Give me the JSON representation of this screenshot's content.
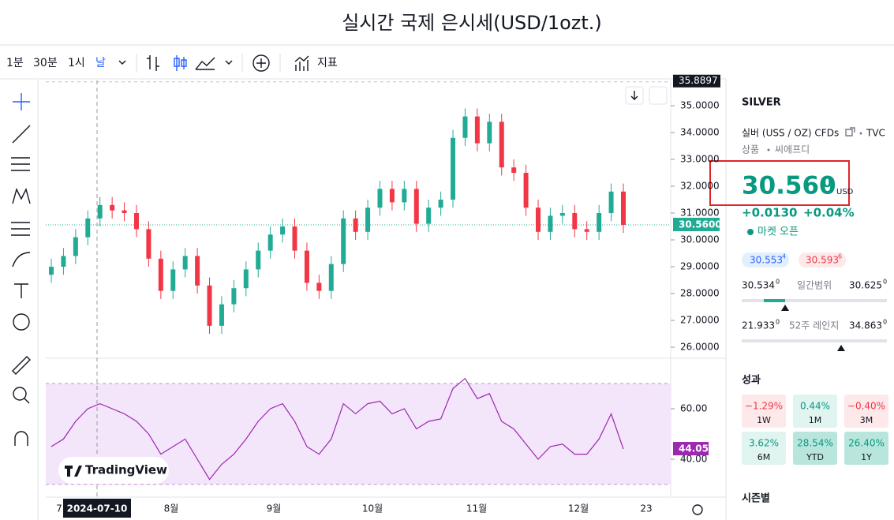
{
  "header": {
    "title": "실시간 국제 은시세(USD/1ozt.)"
  },
  "toolbar": {
    "intervals": [
      "1분",
      "30분",
      "1시",
      "날"
    ],
    "indicators": "지표"
  },
  "chart": {
    "type": "candlestick",
    "colors": {
      "up": "#22ab94",
      "down": "#f23645",
      "rsi": "#9c27b0"
    },
    "ylim": [
      25.59,
      35.94
    ],
    "yticks": [
      {
        "value": 26,
        "label": "26.0000"
      },
      {
        "value": 27,
        "label": "27.0000"
      },
      {
        "value": 28,
        "label": "28.0000"
      },
      {
        "value": 29,
        "label": "29.0000"
      },
      {
        "value": 30,
        "label": "30.0000"
      },
      {
        "value": 31,
        "label": "31.0000"
      },
      {
        "value": 32,
        "label": "32.0000"
      },
      {
        "value": 33,
        "label": "33.0000"
      },
      {
        "value": 34,
        "label": "34.0000"
      },
      {
        "value": 35,
        "label": "35.0000"
      }
    ],
    "top_label": 35.8897,
    "last": 30.56,
    "last_label": "30.5600",
    "candles": {
      "open": [
        28.7,
        29.0,
        29.4,
        30.1,
        30.8,
        31.3,
        31.1,
        31.0,
        30.4,
        29.3,
        28.1,
        28.9,
        29.4,
        28.3,
        26.8,
        27.6,
        28.2,
        28.9,
        29.6,
        30.2,
        30.5,
        29.6,
        28.4,
        28.1,
        29.1,
        30.8,
        30.3,
        31.2,
        31.9,
        31.4,
        31.9,
        30.6,
        31.2,
        31.5,
        33.8,
        34.6,
        33.6,
        34.4,
        32.7,
        32.5,
        31.2,
        30.3,
        30.9,
        31.0,
        30.4,
        30.3,
        31.0,
        31.8
      ],
      "high": [
        29.3,
        29.7,
        30.4,
        31.1,
        31.6,
        31.6,
        31.4,
        31.3,
        30.7,
        29.6,
        29.2,
        29.7,
        29.7,
        28.6,
        27.9,
        28.5,
        29.2,
        29.9,
        30.5,
        30.8,
        30.8,
        29.9,
        28.7,
        29.4,
        31.1,
        31.1,
        31.5,
        32.2,
        32.2,
        32.2,
        32.2,
        31.5,
        31.8,
        34.1,
        34.9,
        34.9,
        34.7,
        34.7,
        33.0,
        32.8,
        31.5,
        31.2,
        31.3,
        31.3,
        30.7,
        31.3,
        32.1,
        32.1
      ],
      "low": [
        28.4,
        28.7,
        29.1,
        29.8,
        30.5,
        30.8,
        30.7,
        30.1,
        29.0,
        27.8,
        27.8,
        28.6,
        28.0,
        26.5,
        26.5,
        27.3,
        27.9,
        28.6,
        29.3,
        29.9,
        29.3,
        28.1,
        27.8,
        27.8,
        28.8,
        30.0,
        30.0,
        30.9,
        31.1,
        31.1,
        30.3,
        30.3,
        30.9,
        31.2,
        33.5,
        33.3,
        33.3,
        32.4,
        32.2,
        30.9,
        30.0,
        30.0,
        30.6,
        30.1,
        30.0,
        30.0,
        30.7,
        30.26
      ],
      "close": [
        29.0,
        29.4,
        30.1,
        30.8,
        31.3,
        31.1,
        31.0,
        30.4,
        29.3,
        28.1,
        28.9,
        29.4,
        28.3,
        26.8,
        27.6,
        28.2,
        28.9,
        29.6,
        30.2,
        30.5,
        29.6,
        28.4,
        28.1,
        29.1,
        30.8,
        30.3,
        31.2,
        31.9,
        31.4,
        31.9,
        30.6,
        31.2,
        31.5,
        33.8,
        34.6,
        33.6,
        34.4,
        32.7,
        32.5,
        31.2,
        30.3,
        30.9,
        31.0,
        30.4,
        30.3,
        31.0,
        31.8,
        30.56
      ]
    },
    "rsi": {
      "ylim": [
        25,
        75
      ],
      "band": [
        30,
        70
      ],
      "yticks": [
        {
          "value": 40,
          "label": "40.00"
        },
        {
          "value": 60,
          "label": "60.00"
        }
      ],
      "values": [
        45,
        48,
        55,
        60,
        62,
        60,
        58,
        55,
        50,
        42,
        45,
        48,
        40,
        32,
        38,
        42,
        48,
        55,
        60,
        62,
        55,
        45,
        42,
        48,
        62,
        58,
        62,
        63,
        58,
        60,
        52,
        55,
        56,
        68,
        72,
        64,
        66,
        55,
        52,
        46,
        40,
        45,
        46,
        42,
        42,
        48,
        58,
        44.05
      ]
    },
    "x_labels": [
      "7",
      "2024-07-10",
      "8월",
      "9월",
      "10월",
      "11월",
      "12월",
      "23"
    ],
    "logo": "TradingView"
  },
  "panel": {
    "symbol": "SILVER",
    "name": "실버 (USS / OZ) CFDs",
    "exchange": "TVC",
    "category": "상품",
    "subcategory": "씨에프디",
    "price": "30.560",
    "price_sup": "0",
    "currency": "USD",
    "change": "+0.0130",
    "change_pct": "+0.04%",
    "status": "마켓 오픈",
    "bid": "30.553",
    "bid_sup": "4",
    "ask": "30.593",
    "ask_sup": "6",
    "day_low": "30.534",
    "day_low_sup": "0",
    "day_range_label": "일간범위",
    "day_high": "30.625",
    "day_high_sup": "0",
    "week_low": "21.933",
    "week_low_sup": "0",
    "week_range_label": "52주 레인지",
    "week_high": "34.863",
    "week_high_sup": "0",
    "performance_title": "성과",
    "performance": [
      {
        "value": "−1.29%",
        "period": "1W"
      },
      {
        "value": "0.44%",
        "period": "1M"
      },
      {
        "value": "−0.40%",
        "period": "3M"
      },
      {
        "value": "3.62%",
        "period": "6M"
      },
      {
        "value": "28.54%",
        "period": "YTD"
      },
      {
        "value": "26.40%",
        "period": "1Y"
      }
    ],
    "seasonal_title": "시즌별"
  }
}
